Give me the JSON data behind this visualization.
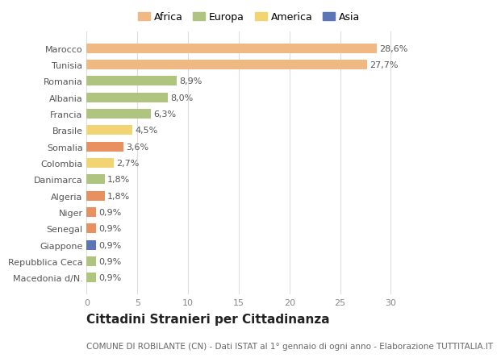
{
  "categories": [
    "Macedonia d/N.",
    "Repubblica Ceca",
    "Giappone",
    "Senegal",
    "Niger",
    "Algeria",
    "Danimarca",
    "Colombia",
    "Somalia",
    "Brasile",
    "Francia",
    "Albania",
    "Romania",
    "Tunisia",
    "Marocco"
  ],
  "values": [
    0.9,
    0.9,
    0.9,
    0.9,
    0.9,
    1.8,
    1.8,
    2.7,
    3.6,
    4.5,
    6.3,
    8.0,
    8.9,
    27.7,
    28.6
  ],
  "labels": [
    "0,9%",
    "0,9%",
    "0,9%",
    "0,9%",
    "0,9%",
    "1,8%",
    "1,8%",
    "2,7%",
    "3,6%",
    "4,5%",
    "6,3%",
    "8,0%",
    "8,9%",
    "27,7%",
    "28,6%"
  ],
  "colors": [
    "#aec47f",
    "#aec47f",
    "#5b75b5",
    "#e89060",
    "#e89060",
    "#e89060",
    "#aec47f",
    "#f2d472",
    "#e89060",
    "#f2d472",
    "#aec47f",
    "#aec47f",
    "#aec47f",
    "#f0b882",
    "#f0b882"
  ],
  "legend_labels": [
    "Africa",
    "Europa",
    "America",
    "Asia"
  ],
  "legend_colors": [
    "#f0b882",
    "#aec47f",
    "#f2d472",
    "#5b75b5"
  ],
  "title": "Cittadini Stranieri per Cittadinanza",
  "subtitle": "COMUNE DI ROBILANTE (CN) - Dati ISTAT al 1° gennaio di ogni anno - Elaborazione TUTTITALIA.IT",
  "xlim": [
    0,
    32
  ],
  "xticks": [
    0,
    5,
    10,
    15,
    20,
    25,
    30
  ],
  "background_color": "#ffffff",
  "bar_height": 0.6,
  "title_fontsize": 11,
  "subtitle_fontsize": 7.5,
  "tick_fontsize": 8,
  "label_fontsize": 8
}
